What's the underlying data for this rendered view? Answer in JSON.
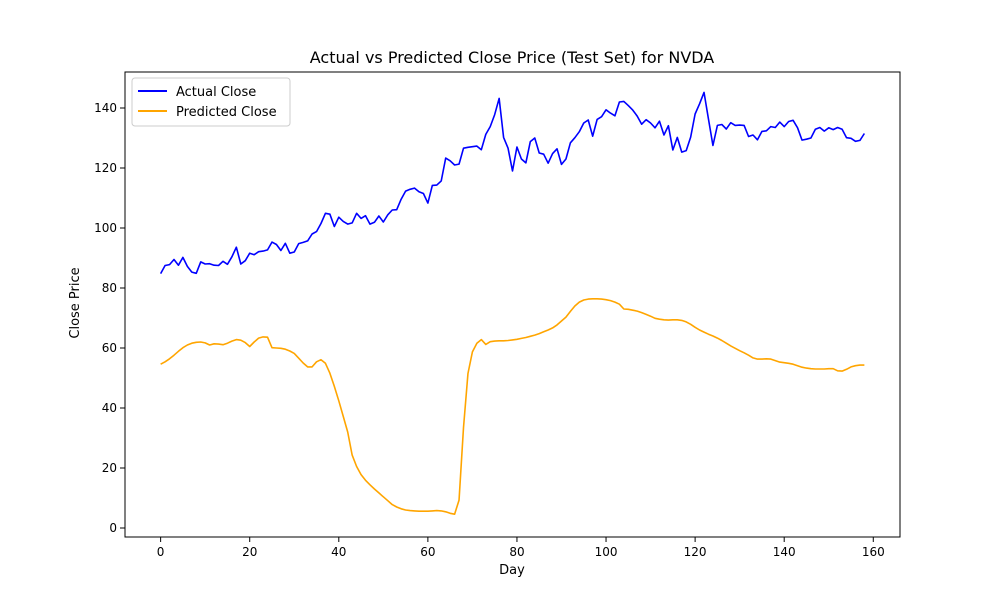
{
  "chart_data": {
    "type": "line",
    "title": "Actual vs Predicted Close Price (Test Set) for NVDA",
    "xlabel": "Day",
    "ylabel": "Close Price",
    "xlim": [
      -8,
      166
    ],
    "ylim": [
      -3,
      152
    ],
    "xticks": [
      0,
      20,
      40,
      60,
      80,
      100,
      120,
      140,
      160
    ],
    "yticks": [
      0,
      20,
      40,
      60,
      80,
      100,
      120,
      140
    ],
    "grid": false,
    "legend_position": "top-left",
    "series": [
      {
        "name": "Actual Close",
        "color": "#0000ff",
        "values": [
          84.8,
          87.5,
          87.8,
          89.5,
          87.6,
          90.2,
          87.2,
          85.3,
          84.9,
          88.7,
          88.0,
          88.1,
          87.6,
          87.5,
          88.9,
          87.9,
          90.4,
          93.6,
          88.0,
          89.1,
          91.6,
          91.1,
          92.1,
          92.3,
          92.7,
          95.3,
          94.5,
          92.5,
          94.9,
          91.6,
          92.0,
          94.8,
          95.2,
          95.7,
          98.0,
          98.8,
          101.5,
          104.9,
          104.6,
          100.5,
          103.6,
          102.2,
          101.3,
          101.7,
          104.9,
          103.2,
          104.1,
          101.3,
          101.9,
          104.0,
          102.0,
          104.4,
          106.0,
          106.1,
          109.6,
          112.3,
          112.9,
          113.3,
          112.1,
          111.5,
          108.3,
          114.2,
          114.3,
          115.7,
          123.3,
          122.4,
          121.0,
          121.3,
          126.6,
          126.9,
          127.1,
          127.3,
          126.1,
          131.2,
          133.8,
          137.8,
          143.2,
          130.2,
          126.6,
          119.0,
          127.0,
          123.0,
          121.7,
          128.8,
          130.0,
          125.0,
          124.6,
          121.6,
          124.8,
          126.4,
          121.2,
          123.0,
          128.4,
          130.1,
          132.1,
          135.0,
          136.0,
          130.6,
          136.2,
          137.1,
          139.4,
          138.3,
          137.4,
          142.0,
          142.2,
          140.8,
          139.3,
          137.3,
          134.6,
          136.1,
          135.0,
          133.4,
          135.6,
          131.0,
          134.1,
          126.0,
          130.2,
          125.3,
          125.8,
          130.3,
          138.0,
          141.4,
          145.2,
          136.3,
          127.5,
          134.2,
          134.5,
          133.0,
          135.1,
          134.2,
          134.3,
          134.2,
          130.5,
          131.0,
          129.4,
          132.2,
          132.4,
          133.8,
          133.5,
          135.3,
          133.8,
          135.5,
          135.9,
          133.4,
          129.3,
          129.6,
          130.0,
          132.9,
          133.5,
          132.3,
          133.4,
          132.8,
          133.5,
          132.9,
          130.1,
          129.9,
          128.9,
          129.2,
          131.5
        ]
      },
      {
        "name": "Predicted Close",
        "color": "#ffa500",
        "values": [
          54.6,
          55.4,
          56.4,
          57.6,
          58.9,
          60.1,
          61.0,
          61.6,
          61.9,
          62.0,
          61.7,
          61.0,
          61.4,
          61.3,
          61.1,
          61.6,
          62.3,
          62.8,
          62.6,
          61.8,
          60.5,
          62.0,
          63.3,
          63.7,
          63.6,
          60.1,
          60.0,
          59.9,
          59.6,
          59.0,
          58.2,
          56.6,
          55.0,
          53.7,
          53.7,
          55.4,
          56.1,
          54.9,
          51.6,
          47.2,
          42.4,
          37.2,
          32.0,
          24.3,
          20.5,
          17.8,
          15.9,
          14.4,
          13.0,
          11.7,
          10.4,
          9.1,
          7.8,
          7.0,
          6.4,
          6.0,
          5.8,
          5.7,
          5.6,
          5.6,
          5.6,
          5.7,
          5.8,
          5.7,
          5.4,
          4.9,
          4.6,
          9.3,
          33.5,
          51.5,
          58.7,
          61.6,
          62.8,
          61.2,
          62.1,
          62.3,
          62.4,
          62.4,
          62.5,
          62.7,
          62.9,
          63.2,
          63.5,
          63.9,
          64.3,
          64.8,
          65.4,
          66.0,
          66.7,
          67.7,
          69.0,
          70.3,
          72.2,
          74.0,
          75.3,
          76.0,
          76.3,
          76.4,
          76.4,
          76.3,
          76.1,
          75.8,
          75.3,
          74.6,
          73.0,
          72.9,
          72.6,
          72.3,
          71.8,
          71.2,
          70.6,
          69.9,
          69.6,
          69.4,
          69.3,
          69.4,
          69.4,
          69.2,
          68.7,
          67.9,
          66.9,
          66.0,
          65.3,
          64.6,
          64.0,
          63.3,
          62.5,
          61.6,
          60.7,
          59.9,
          59.1,
          58.4,
          57.6,
          56.7,
          56.3,
          56.3,
          56.4,
          56.3,
          55.8,
          55.3,
          55.1,
          54.9,
          54.6,
          54.1,
          53.6,
          53.3,
          53.1,
          53.0,
          53.0,
          53.0,
          53.1,
          53.1,
          52.4,
          52.3,
          52.9,
          53.7,
          54.1,
          54.3,
          54.3
        ]
      }
    ]
  }
}
